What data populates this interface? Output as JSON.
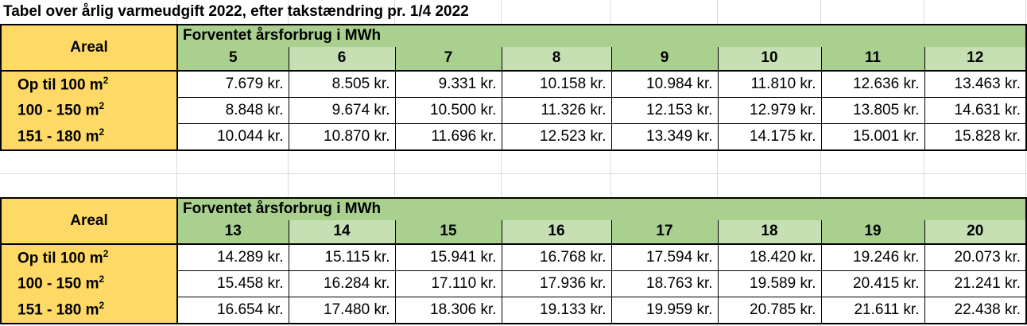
{
  "title": "Tabel over årlig varmeudgift 2022, efter takstændring pr. 1/4 2022",
  "colors": {
    "areal": "#FFD966",
    "green_dark": "#A9D08E",
    "green_light": "#C6E0B4"
  },
  "tables": [
    {
      "areal_label": "Areal",
      "group_label": "Forventet årsforbrug i MWh",
      "mwh": [
        "5",
        "6",
        "7",
        "8",
        "9",
        "10",
        "11",
        "12"
      ],
      "rows": [
        {
          "label": "Op til 100 m",
          "sup": "2",
          "values": [
            "7.679 kr.",
            "8.505 kr.",
            "9.331 kr.",
            "10.158 kr.",
            "10.984 kr.",
            "11.810 kr.",
            "12.636 kr.",
            "13.463 kr."
          ]
        },
        {
          "label": "100 - 150 m",
          "sup": "2",
          "values": [
            "8.848 kr.",
            "9.674 kr.",
            "10.500 kr.",
            "11.326 kr.",
            "12.153 kr.",
            "12.979 kr.",
            "13.805 kr.",
            "14.631 kr."
          ]
        },
        {
          "label": "151 - 180 m",
          "sup": "2",
          "values": [
            "10.044 kr.",
            "10.870 kr.",
            "11.696 kr.",
            "12.523 kr.",
            "13.349 kr.",
            "14.175 kr.",
            "15.001 kr.",
            "15.828 kr."
          ]
        }
      ]
    },
    {
      "areal_label": "Areal",
      "group_label": "Forventet årsforbrug i MWh",
      "mwh": [
        "13",
        "14",
        "15",
        "16",
        "17",
        "18",
        "19",
        "20"
      ],
      "rows": [
        {
          "label": "Op til 100 m",
          "sup": "2",
          "values": [
            "14.289 kr.",
            "15.115 kr.",
            "15.941 kr.",
            "16.768 kr.",
            "17.594 kr.",
            "18.420 kr.",
            "19.246 kr.",
            "20.073 kr."
          ]
        },
        {
          "label": "100 - 150 m",
          "sup": "2",
          "values": [
            "15.458 kr.",
            "16.284 kr.",
            "17.110 kr.",
            "17.936 kr.",
            "18.763 kr.",
            "19.589 kr.",
            "20.415 kr.",
            "21.241 kr."
          ]
        },
        {
          "label": "151 - 180 m",
          "sup": "2",
          "values": [
            "16.654 kr.",
            "17.480 kr.",
            "18.306 kr.",
            "19.133 kr.",
            "19.959 kr.",
            "20.785 kr.",
            "21.611 kr.",
            "22.438 kr."
          ]
        }
      ]
    }
  ]
}
